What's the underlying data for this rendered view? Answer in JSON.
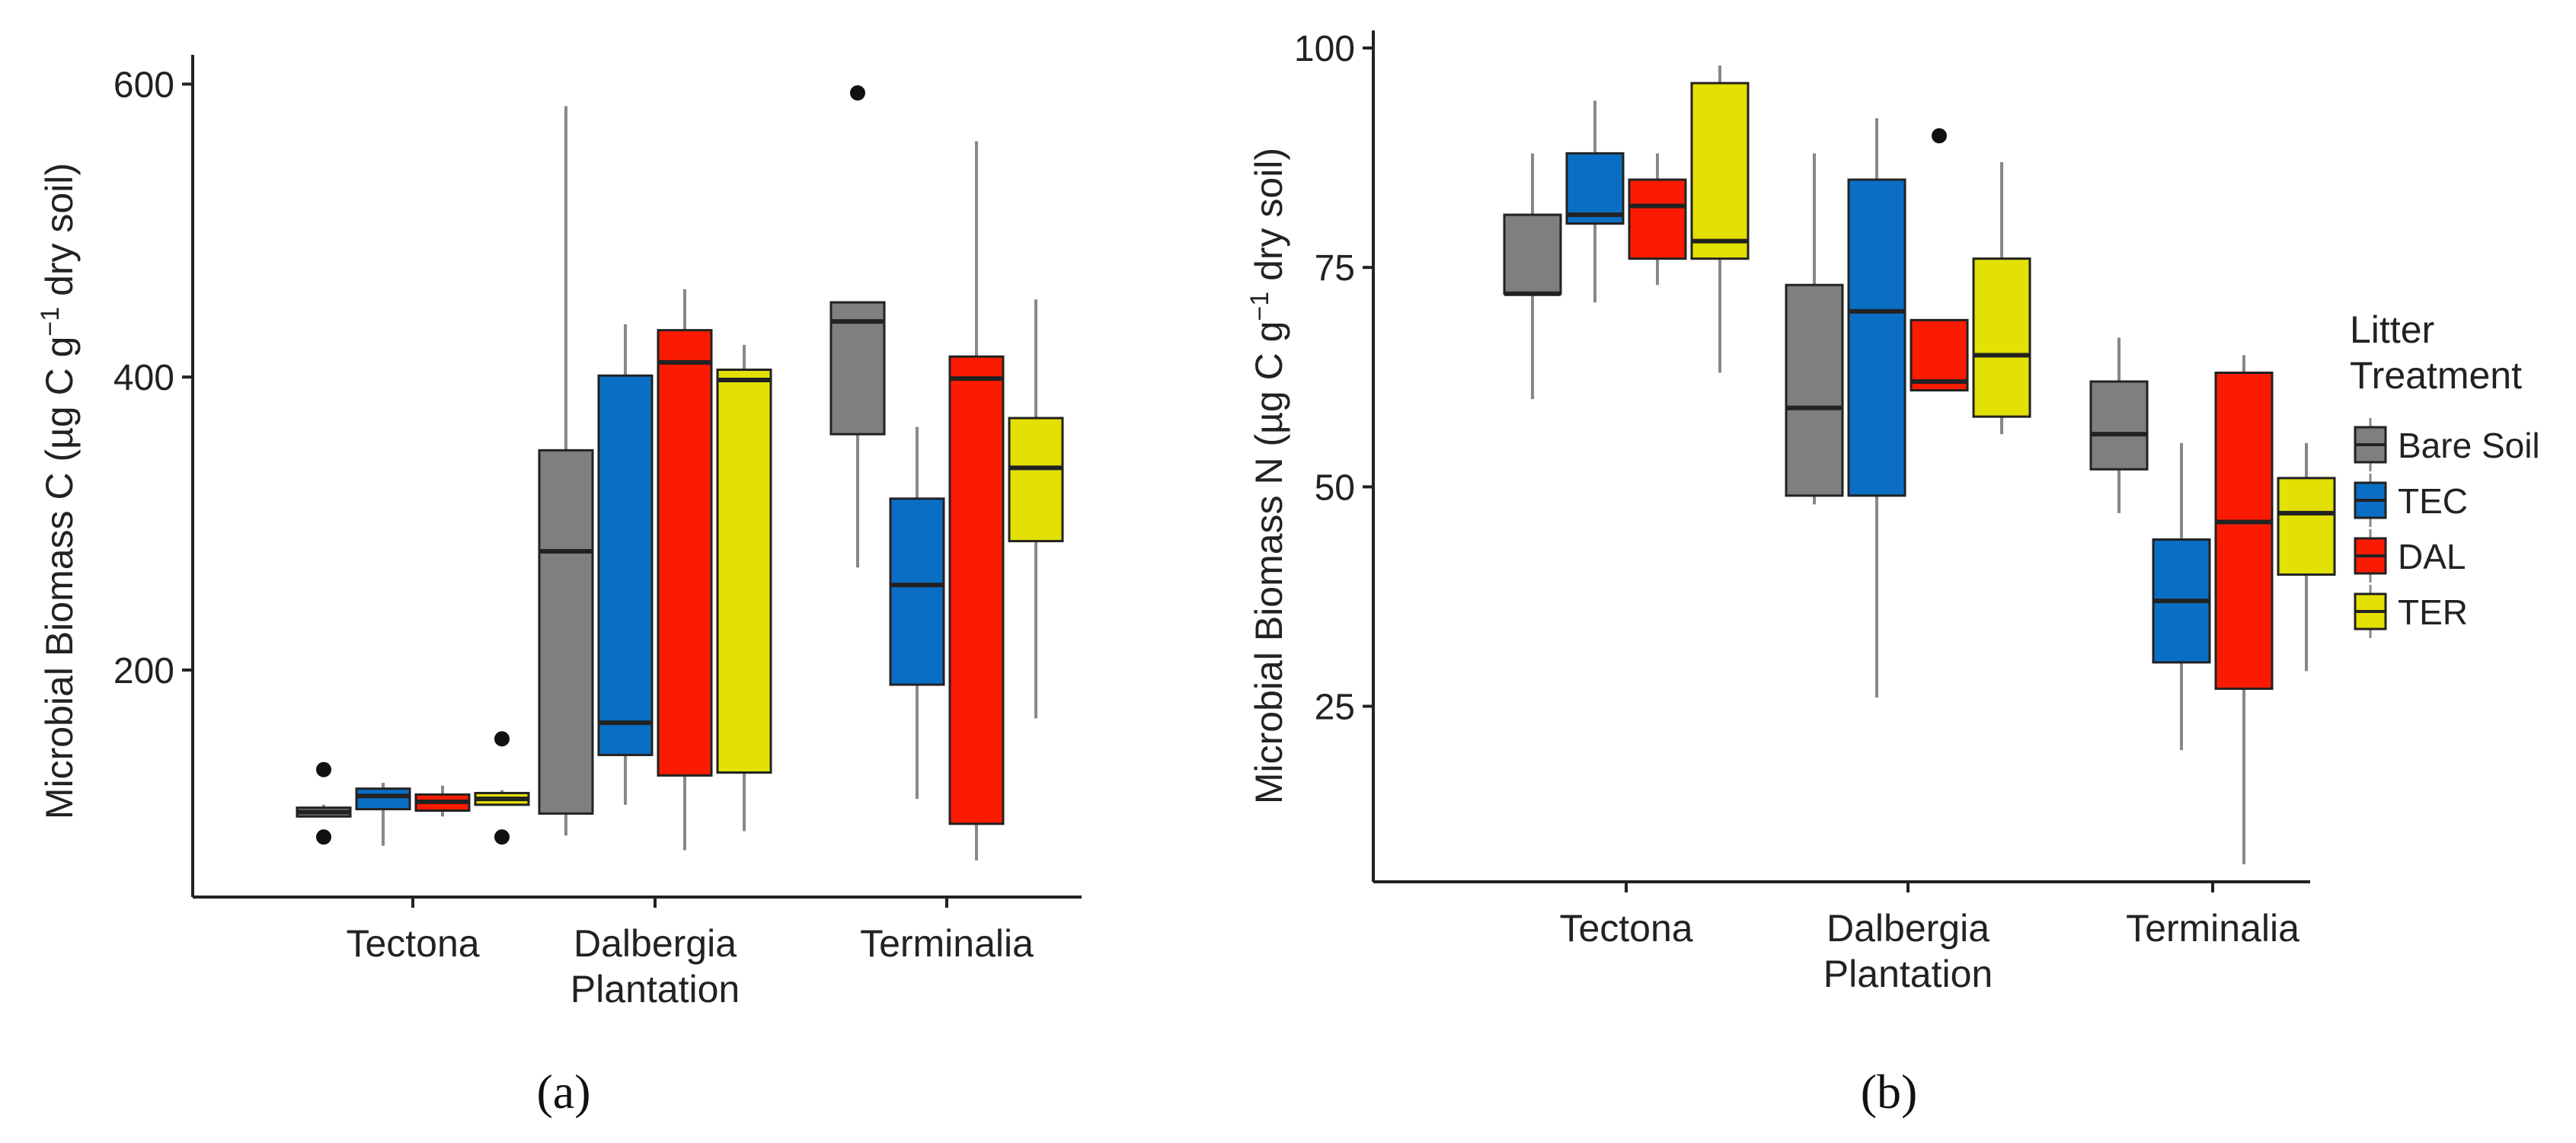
{
  "colors": {
    "Bare Soil": "#7f7f7f",
    "TEC": "#0a6fc4",
    "DAL": "#fa1b02",
    "TER": "#e3e003",
    "whisker": "#888888",
    "outline": "#222222"
  },
  "legend": {
    "title_line1": "Litter",
    "title_line2": "Treatment",
    "items": [
      "Bare Soil",
      "TEC",
      "DAL",
      "TER"
    ]
  },
  "chart_data": [
    {
      "type": "boxplot",
      "panel_label": "(a)",
      "ylabel_prefix": "Microbial Biomass C (",
      "ylabel_mu": "µ",
      "ylabel_mid": "g C g",
      "ylabel_sup": "−1",
      "ylabel_suffix": " dry soil)",
      "ylim": [
        45,
        620
      ],
      "yticks": [
        "200",
        "400",
        "600"
      ],
      "ytick_values": [
        200,
        400,
        600
      ],
      "categories": [
        {
          "line1": "Tectona",
          "line2": ""
        },
        {
          "line1": "Dalbergia",
          "line2": "Plantation"
        },
        {
          "line1": "Terminalia",
          "line2": ""
        }
      ],
      "series_names": [
        "Bare Soil",
        "TEC",
        "DAL",
        "TER"
      ],
      "boxes": [
        [
          {
            "low": 100,
            "q1": 100,
            "median": 103,
            "q3": 106,
            "high": 108,
            "outliers": [
              86,
              132
            ]
          },
          {
            "low": 80,
            "q1": 105,
            "median": 114,
            "q3": 119,
            "high": 123,
            "outliers": []
          },
          {
            "low": 100,
            "q1": 104,
            "median": 110,
            "q3": 115,
            "high": 121,
            "outliers": []
          },
          {
            "low": 108,
            "q1": 108,
            "median": 112,
            "q3": 116,
            "high": 118,
            "outliers": [
              86,
              153
            ]
          }
        ],
        [
          {
            "low": 87,
            "q1": 102,
            "median": 281,
            "q3": 350,
            "high": 585,
            "outliers": []
          },
          {
            "low": 108,
            "q1": 142,
            "median": 164,
            "q3": 401,
            "high": 436,
            "outliers": []
          },
          {
            "low": 77,
            "q1": 128,
            "median": 410,
            "q3": 432,
            "high": 460,
            "outliers": []
          },
          {
            "low": 90,
            "q1": 130,
            "median": 398,
            "q3": 405,
            "high": 422,
            "outliers": []
          }
        ],
        [
          {
            "low": 270,
            "q1": 361,
            "median": 438,
            "q3": 451,
            "high": 451,
            "outliers": [
              594
            ]
          },
          {
            "low": 112,
            "q1": 190,
            "median": 258,
            "q3": 317,
            "high": 366,
            "outliers": []
          },
          {
            "low": 70,
            "q1": 95,
            "median": 399,
            "q3": 414,
            "high": 561,
            "outliers": []
          },
          {
            "low": 167,
            "q1": 288,
            "median": 338,
            "q3": 372,
            "high": 453,
            "outliers": []
          }
        ]
      ]
    },
    {
      "type": "boxplot",
      "panel_label": "(b)",
      "ylabel_prefix": "Microbial Biomass N (",
      "ylabel_mu": "µ",
      "ylabel_mid": "g C g",
      "ylabel_sup": "−1",
      "ylabel_suffix": " dry soil)",
      "ylim": [
        5,
        102
      ],
      "yticks": [
        "25",
        "50",
        "75",
        "100"
      ],
      "ytick_values": [
        25,
        50,
        75,
        100
      ],
      "categories": [
        {
          "line1": "Tectona",
          "line2": ""
        },
        {
          "line1": "Dalbergia",
          "line2": "Plantation"
        },
        {
          "line1": "Terminalia",
          "line2": ""
        }
      ],
      "series_names": [
        "Bare Soil",
        "TEC",
        "DAL",
        "TER"
      ],
      "boxes": [
        [
          {
            "low": 60,
            "q1": 72,
            "median": 72,
            "q3": 81,
            "high": 88,
            "outliers": []
          },
          {
            "low": 71,
            "q1": 80,
            "median": 81,
            "q3": 88,
            "high": 94,
            "outliers": []
          },
          {
            "low": 73,
            "q1": 76,
            "median": 82,
            "q3": 85,
            "high": 88,
            "outliers": []
          },
          {
            "low": 63,
            "q1": 76,
            "median": 78,
            "q3": 96,
            "high": 98,
            "outliers": []
          }
        ],
        [
          {
            "low": 48,
            "q1": 49,
            "median": 59,
            "q3": 73,
            "high": 88,
            "outliers": []
          },
          {
            "low": 26,
            "q1": 49,
            "median": 70,
            "q3": 85,
            "high": 92,
            "outliers": []
          },
          {
            "low": 61,
            "q1": 61,
            "median": 62,
            "q3": 69,
            "high": 69,
            "outliers": [
              90
            ]
          },
          {
            "low": 56,
            "q1": 58,
            "median": 65,
            "q3": 76,
            "high": 87,
            "outliers": []
          }
        ],
        [
          {
            "low": 47,
            "q1": 52,
            "median": 56,
            "q3": 62,
            "high": 67,
            "outliers": []
          },
          {
            "low": 20,
            "q1": 30,
            "median": 37,
            "q3": 44,
            "high": 55,
            "outliers": []
          },
          {
            "low": 7,
            "q1": 27,
            "median": 46,
            "q3": 63,
            "high": 65,
            "outliers": []
          },
          {
            "low": 29,
            "q1": 40,
            "median": 47,
            "q3": 51,
            "high": 55,
            "outliers": []
          }
        ]
      ]
    }
  ]
}
